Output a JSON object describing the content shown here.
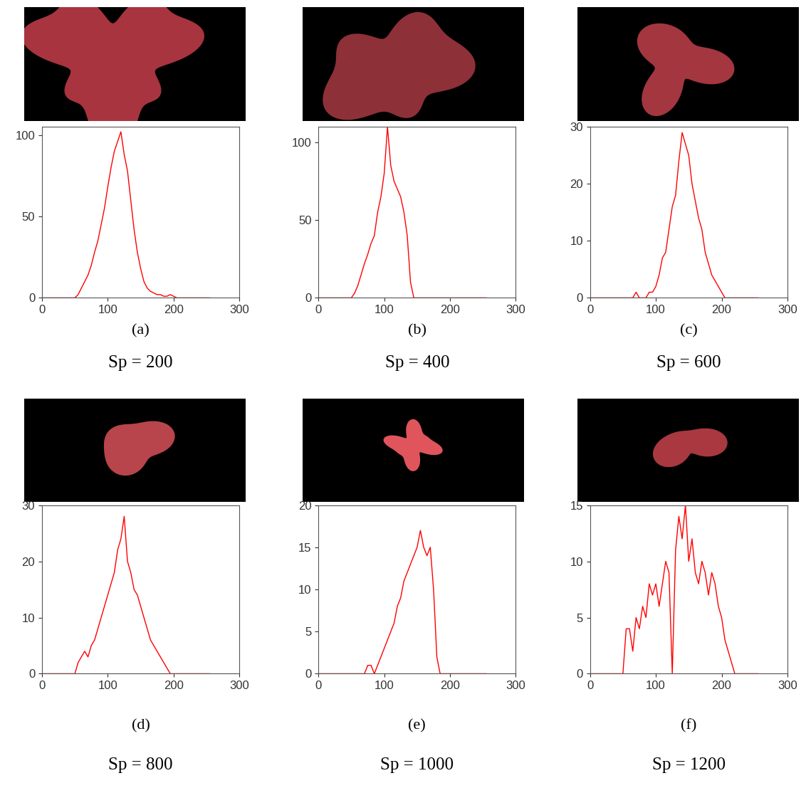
{
  "chart_data": [
    {
      "type": "line",
      "label": "(a)",
      "caption": "Sp = 200",
      "color": "#ff0000",
      "x": [
        0,
        5,
        10,
        15,
        20,
        25,
        30,
        35,
        40,
        45,
        50,
        55,
        60,
        65,
        70,
        75,
        80,
        85,
        90,
        95,
        100,
        105,
        110,
        115,
        120,
        125,
        130,
        135,
        140,
        145,
        150,
        155,
        160,
        165,
        170,
        175,
        180,
        185,
        190,
        195,
        200,
        205,
        210,
        215,
        220,
        225,
        230,
        235,
        240,
        245,
        250,
        255
      ],
      "values": [
        0,
        0,
        0,
        0,
        0,
        0,
        0,
        0,
        0,
        0,
        0,
        2,
        6,
        10,
        14,
        20,
        28,
        35,
        45,
        55,
        68,
        80,
        90,
        96,
        102,
        88,
        78,
        60,
        42,
        28,
        18,
        10,
        6,
        4,
        3,
        2,
        2,
        1,
        1,
        2,
        1,
        0,
        0,
        0,
        0,
        0,
        0,
        0,
        0,
        0,
        0,
        0
      ],
      "xlim": [
        0,
        300
      ],
      "xticks": [
        0,
        100,
        200,
        300
      ],
      "ylim": [
        0,
        105
      ],
      "yticks": [
        0,
        50,
        100
      ]
    },
    {
      "type": "line",
      "label": "(b)",
      "caption": "Sp = 400",
      "color": "#ff0000",
      "x": [
        0,
        5,
        10,
        15,
        20,
        25,
        30,
        35,
        40,
        45,
        50,
        55,
        60,
        65,
        70,
        75,
        80,
        85,
        90,
        95,
        100,
        105,
        110,
        115,
        120,
        125,
        130,
        135,
        140,
        145,
        150,
        155,
        160,
        165,
        170,
        175,
        180,
        185,
        190,
        195,
        200,
        205,
        210,
        215,
        220,
        225,
        230,
        235,
        240,
        245,
        250,
        255
      ],
      "values": [
        0,
        0,
        0,
        0,
        0,
        0,
        0,
        0,
        0,
        0,
        0,
        3,
        8,
        15,
        22,
        28,
        35,
        40,
        55,
        65,
        80,
        110,
        85,
        75,
        70,
        65,
        55,
        40,
        10,
        0,
        0,
        0,
        0,
        0,
        0,
        0,
        0,
        0,
        0,
        0,
        0,
        0,
        0,
        0,
        0,
        0,
        0,
        0,
        0,
        0,
        0,
        0
      ],
      "xlim": [
        0,
        300
      ],
      "xticks": [
        0,
        100,
        200,
        300
      ],
      "ylim": [
        0,
        110
      ],
      "yticks": [
        0,
        50,
        100
      ]
    },
    {
      "type": "line",
      "label": "(c)",
      "caption": "Sp = 600",
      "color": "#ff0000",
      "x": [
        0,
        5,
        10,
        15,
        20,
        25,
        30,
        35,
        40,
        45,
        50,
        55,
        60,
        65,
        70,
        75,
        80,
        85,
        90,
        95,
        100,
        105,
        110,
        115,
        120,
        125,
        130,
        135,
        140,
        145,
        150,
        155,
        160,
        165,
        170,
        175,
        180,
        185,
        190,
        195,
        200,
        205,
        210,
        215,
        220,
        225,
        230,
        235,
        240,
        245,
        250,
        255
      ],
      "values": [
        0,
        0,
        0,
        0,
        0,
        0,
        0,
        0,
        0,
        0,
        0,
        0,
        0,
        0,
        1,
        0,
        0,
        0,
        1,
        1,
        2,
        4,
        7,
        8,
        12,
        16,
        18,
        24,
        29,
        27,
        25,
        20,
        17,
        14,
        12,
        8,
        6,
        4,
        3,
        2,
        1,
        0,
        0,
        0,
        0,
        0,
        0,
        0,
        0,
        0,
        0,
        0
      ],
      "xlim": [
        0,
        300
      ],
      "xticks": [
        0,
        100,
        200,
        300
      ],
      "ylim": [
        0,
        30
      ],
      "yticks": [
        0,
        10,
        20,
        30
      ]
    },
    {
      "type": "line",
      "label": "(d)",
      "caption": "Sp = 800",
      "color": "#ff0000",
      "x": [
        0,
        5,
        10,
        15,
        20,
        25,
        30,
        35,
        40,
        45,
        50,
        55,
        60,
        65,
        70,
        75,
        80,
        85,
        90,
        95,
        100,
        105,
        110,
        115,
        120,
        125,
        130,
        135,
        140,
        145,
        150,
        155,
        160,
        165,
        170,
        175,
        180,
        185,
        190,
        195,
        200,
        205,
        210,
        215,
        220,
        225,
        230,
        235,
        240,
        245,
        250,
        255
      ],
      "values": [
        0,
        0,
        0,
        0,
        0,
        0,
        0,
        0,
        0,
        0,
        0,
        2,
        3,
        4,
        3,
        5,
        6,
        8,
        10,
        12,
        14,
        16,
        18,
        22,
        24,
        28,
        20,
        18,
        15,
        14,
        12,
        10,
        8,
        6,
        5,
        4,
        3,
        2,
        1,
        0,
        0,
        0,
        0,
        0,
        0,
        0,
        0,
        0,
        0,
        0,
        0,
        0
      ],
      "xlim": [
        0,
        300
      ],
      "xticks": [
        0,
        100,
        200,
        300
      ],
      "ylim": [
        0,
        30
      ],
      "yticks": [
        0,
        10,
        20,
        30
      ]
    },
    {
      "type": "line",
      "label": "(e)",
      "caption": "Sp = 1000",
      "color": "#ff0000",
      "x": [
        0,
        5,
        10,
        15,
        20,
        25,
        30,
        35,
        40,
        45,
        50,
        55,
        60,
        65,
        70,
        75,
        80,
        85,
        90,
        95,
        100,
        105,
        110,
        115,
        120,
        125,
        130,
        135,
        140,
        145,
        150,
        155,
        160,
        165,
        170,
        175,
        180,
        185,
        190,
        195,
        200,
        205,
        210,
        215,
        220,
        225,
        230,
        235,
        240,
        245,
        250,
        255
      ],
      "values": [
        0,
        0,
        0,
        0,
        0,
        0,
        0,
        0,
        0,
        0,
        0,
        0,
        0,
        0,
        0,
        1,
        1,
        0,
        1,
        2,
        3,
        4,
        5,
        6,
        8,
        9,
        11,
        12,
        13,
        14,
        15,
        17,
        15,
        14,
        15,
        10,
        2,
        0,
        0,
        0,
        0,
        0,
        0,
        0,
        0,
        0,
        0,
        0,
        0,
        0,
        0,
        0
      ],
      "xlim": [
        0,
        300
      ],
      "xticks": [
        0,
        100,
        200,
        300
      ],
      "ylim": [
        0,
        20
      ],
      "yticks": [
        0,
        5,
        10,
        15,
        20
      ]
    },
    {
      "type": "line",
      "label": "(f)",
      "caption": "Sp = 1200",
      "color": "#ff0000",
      "x": [
        0,
        5,
        10,
        15,
        20,
        25,
        30,
        35,
        40,
        45,
        50,
        55,
        60,
        65,
        70,
        75,
        80,
        85,
        90,
        95,
        100,
        105,
        110,
        115,
        120,
        125,
        130,
        135,
        140,
        145,
        150,
        155,
        160,
        165,
        170,
        175,
        180,
        185,
        190,
        195,
        200,
        205,
        210,
        215,
        220,
        225,
        230,
        235,
        240,
        245,
        250,
        255
      ],
      "values": [
        0,
        0,
        0,
        0,
        0,
        0,
        0,
        0,
        0,
        0,
        0,
        4,
        4,
        2,
        5,
        4,
        6,
        5,
        8,
        7,
        8,
        6,
        8,
        10,
        9,
        0,
        11,
        14,
        12,
        15,
        10,
        12,
        9,
        8,
        10,
        9,
        7,
        9,
        8,
        6,
        5,
        3,
        2,
        1,
        0,
        0,
        0,
        0,
        0,
        0,
        0,
        0
      ],
      "xlim": [
        0,
        300
      ],
      "xticks": [
        0,
        100,
        200,
        300
      ],
      "ylim": [
        0,
        15
      ],
      "yticks": [
        0,
        5,
        10,
        15
      ]
    }
  ]
}
